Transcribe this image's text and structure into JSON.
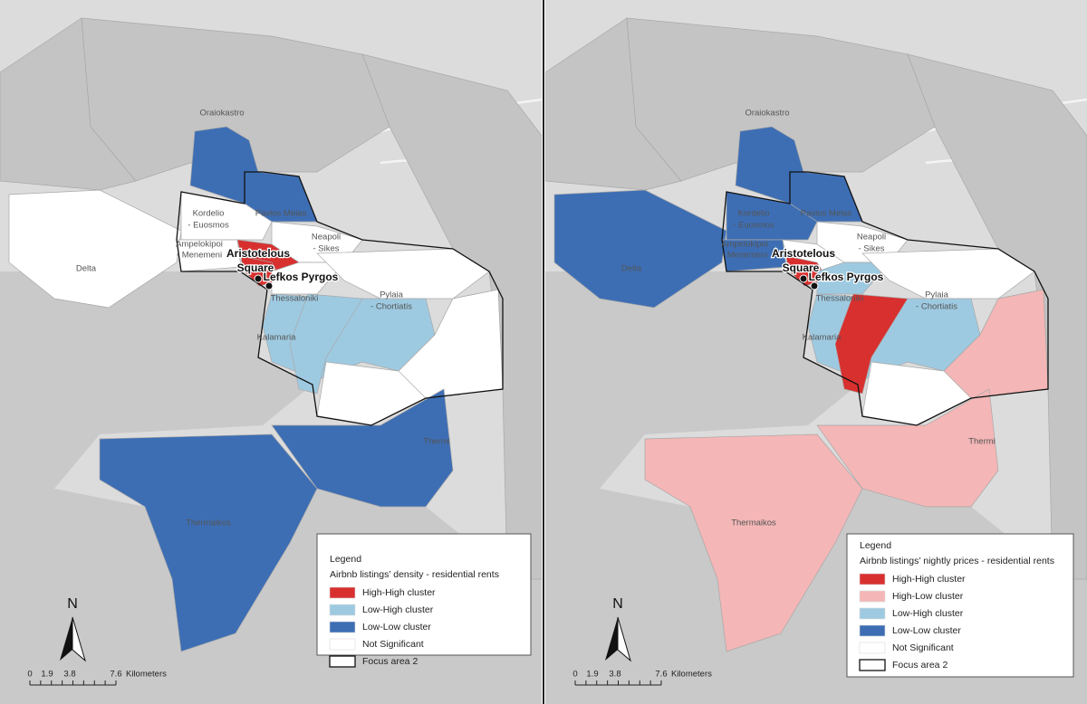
{
  "panels": [
    {
      "places": [
        [
          "Oraiokastro"
        ],
        [
          "Kordelio",
          "- Euosmos"
        ],
        [
          "Pavlos Melas"
        ],
        [
          "Neapoli",
          "- Sikes"
        ],
        [
          "Ampelokipoi",
          "- Menemeni"
        ],
        [
          "Delta"
        ],
        [
          "Thessaloniki"
        ],
        [
          "Pylaia",
          "- Chortiatis"
        ],
        [
          "Kalamaria"
        ],
        [
          "Thermi"
        ],
        [
          "Thermaikos"
        ]
      ],
      "landmarks": [
        [
          "Aristotelous",
          "Square"
        ],
        [
          "Lefkos Pyrgos"
        ]
      ],
      "north": "N",
      "scale": {
        "ticks": [
          0,
          1.9,
          3.8,
          7.6
        ],
        "unit": "Kilometers"
      },
      "legend": {
        "title": "Legend",
        "subtitle": "Airbnb listings’ density - residential rents",
        "items": [
          {
            "label": "High-High cluster",
            "color": "#d7302f"
          },
          {
            "label": "Low-High cluster",
            "color": "#9ecae1"
          },
          {
            "label": "Low-Low cluster",
            "color": "#3d6eb4"
          },
          {
            "label": "Not Significant",
            "color": "#ffffff"
          },
          {
            "label": "Focus area 2"
          }
        ]
      }
    },
    {
      "places": [
        [
          "Oraiokastro"
        ],
        [
          "Kordelio",
          "- Euosmos"
        ],
        [
          "Pavlos Melas"
        ],
        [
          "Neapoli",
          "- Sikes"
        ],
        [
          "Ampelokipoi",
          "- Menemeni"
        ],
        [
          "Delta"
        ],
        [
          "Thessaloniki"
        ],
        [
          "Pylaia",
          "- Chortiatis"
        ],
        [
          "Kalamaria"
        ],
        [
          "Thermi"
        ],
        [
          "Thermaikos"
        ]
      ],
      "landmarks": [
        [
          "Aristotelous",
          "Square"
        ],
        [
          "Lefkos Pyrgos"
        ]
      ],
      "north": "N",
      "scale": {
        "ticks": [
          0,
          1.9,
          3.8,
          7.6
        ],
        "unit": "Kilometers"
      },
      "legend": {
        "title": "Legend",
        "subtitle": "Airbnb listings’ nightly prices - residential rents",
        "items": [
          {
            "label": "High-High cluster",
            "color": "#d7302f"
          },
          {
            "label": "High-Low cluster",
            "color": "#f4b6b6"
          },
          {
            "label": "Low-High cluster",
            "color": "#9ecae1"
          },
          {
            "label": "Low-Low cluster",
            "color": "#3d6eb4"
          },
          {
            "label": "Not Significant",
            "color": "#ffffff"
          },
          {
            "label": "Focus area 2"
          }
        ]
      }
    }
  ]
}
